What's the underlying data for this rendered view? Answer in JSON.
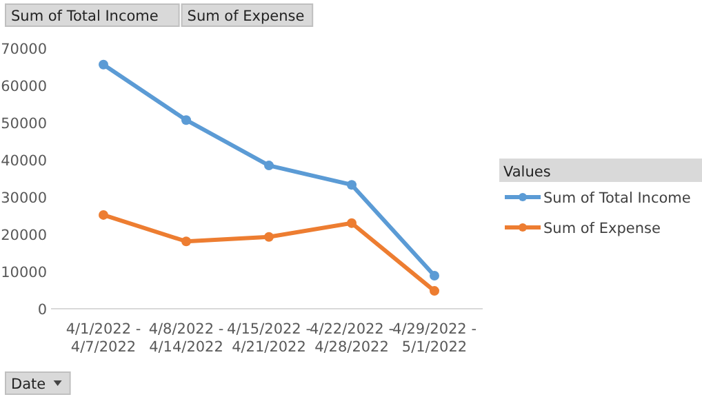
{
  "chart_data": {
    "type": "line",
    "legend_title": "Values",
    "legend": "right",
    "grid": false,
    "marker": "circle",
    "line_style": "solid",
    "categories": [
      "4/1/2022 - 4/7/2022",
      "4/8/2022 - 4/14/2022",
      "4/15/2022 - 4/21/2022",
      "4/22/2022 - 4/28/2022",
      "4/29/2022 - 5/1/2022"
    ],
    "ylim": [
      0,
      70000
    ],
    "yticks": [
      0,
      10000,
      20000,
      30000,
      40000,
      50000,
      60000,
      70000
    ],
    "series": [
      {
        "name": "Sum of Total Income",
        "color": "#5b9bd5",
        "values": [
          65600,
          50700,
          38500,
          33300,
          8900
        ]
      },
      {
        "name": "Sum of Expense",
        "color": "#ed7d31",
        "values": [
          25200,
          18100,
          19300,
          23000,
          4800
        ]
      }
    ],
    "annotations": [
      "Sum of Total Income",
      "Sum of Expense",
      "Date"
    ]
  }
}
